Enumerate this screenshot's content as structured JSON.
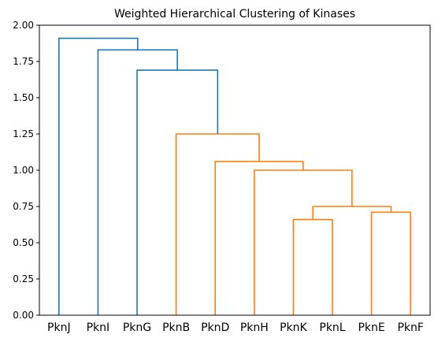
{
  "chart_data": {
    "type": "dendrogram",
    "title": "Weighted Hierarchical Clustering of Kinases",
    "xlabel": "",
    "ylabel": "",
    "ylim": [
      0,
      2.0
    ],
    "yticks": [
      0.0,
      0.25,
      0.5,
      0.75,
      1.0,
      1.25,
      1.5,
      1.75,
      2.0
    ],
    "ytick_labels": [
      "0.00",
      "0.25",
      "0.50",
      "0.75",
      "1.00",
      "1.25",
      "1.50",
      "1.75",
      "2.00"
    ],
    "grid": false,
    "leaves": [
      "PknJ",
      "PknI",
      "PknG",
      "PknB",
      "PknD",
      "PknH",
      "PknK",
      "PknL",
      "PknE",
      "PknF"
    ],
    "colors": {
      "upper_cluster": "#1f77b4",
      "lower_cluster": "#ff7f0e"
    },
    "merges": [
      {
        "left": "PknK",
        "right": "PknL",
        "height": 0.66,
        "color": "#ff7f0e"
      },
      {
        "left": "PknE",
        "right": "PknF",
        "height": 0.71,
        "color": "#ff7f0e"
      },
      {
        "left": "PknK+PknL",
        "right": "PknE+PknF",
        "height": 0.75,
        "color": "#ff7f0e"
      },
      {
        "left": "PknH",
        "right": "PknK+PknL+PknE+PknF",
        "height": 1.0,
        "color": "#ff7f0e"
      },
      {
        "left": "PknD",
        "right": "PknH+PknK+PknL+PknE+PknF",
        "height": 1.06,
        "color": "#ff7f0e"
      },
      {
        "left": "PknB",
        "right": "PknD+PknH+PknK+PknL+PknE+PknF",
        "height": 1.25,
        "color": "#ff7f0e"
      },
      {
        "left": "PknG",
        "right": "PknB+PknD+PknH+PknK+PknL+PknE+PknF",
        "height": 1.69,
        "color": "#1f77b4"
      },
      {
        "left": "PknI",
        "right": "PknG+PknB+PknD+PknH+PknK+PknL+PknE+PknF",
        "height": 1.83,
        "color": "#1f77b4"
      },
      {
        "left": "PknJ",
        "right": "PknI+PknG+PknB+PknD+PknH+PknK+PknL+PknE+PknF",
        "height": 1.91,
        "color": "#1f77b4"
      }
    ]
  }
}
